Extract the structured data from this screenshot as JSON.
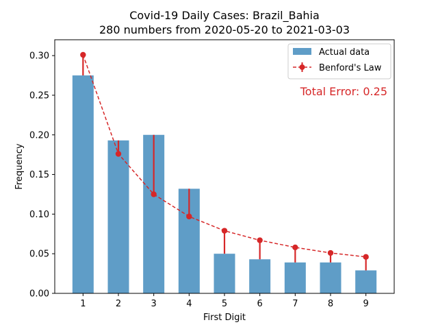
{
  "chart_data": {
    "type": "bar",
    "title_line1": "Covid-19 Daily Cases: Brazil_Bahia",
    "title_line2": "280 numbers from 2020-05-20 to 2021-03-03",
    "xlabel": "First Digit",
    "ylabel": "Frequency",
    "categories": [
      "1",
      "2",
      "3",
      "4",
      "5",
      "6",
      "7",
      "8",
      "9"
    ],
    "x": [
      1,
      2,
      3,
      4,
      5,
      6,
      7,
      8,
      9
    ],
    "xlim": [
      0.2,
      9.8
    ],
    "ylim": [
      0,
      0.32
    ],
    "yticks": [
      0.0,
      0.05,
      0.1,
      0.15,
      0.2,
      0.25,
      0.3
    ],
    "ytick_labels": [
      "0.00",
      "0.05",
      "0.10",
      "0.15",
      "0.20",
      "0.25",
      "0.30"
    ],
    "series": [
      {
        "name": "Actual data",
        "kind": "bar",
        "color": "#5f9dc7",
        "values": [
          0.275,
          0.193,
          0.2,
          0.132,
          0.05,
          0.043,
          0.039,
          0.039,
          0.029
        ]
      },
      {
        "name": "Benford's Law",
        "kind": "line-dashed-with-markers",
        "color": "#d62728",
        "values": [
          0.301,
          0.176,
          0.125,
          0.097,
          0.079,
          0.067,
          0.058,
          0.051,
          0.046
        ]
      }
    ],
    "annotation": "Total Error: 0.25",
    "annotation_color": "#d62728",
    "legend_position": "top-right",
    "grid": false
  }
}
